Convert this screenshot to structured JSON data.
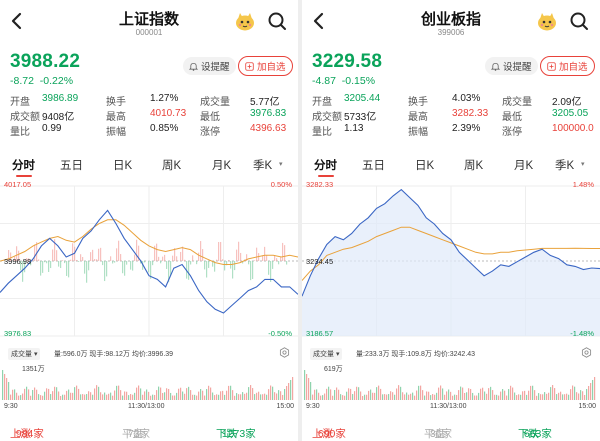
{
  "colors": {
    "up": "#e8423a",
    "down": "#0aa35a",
    "avg_line": "#e9a23b",
    "price_line": "#3a66c4"
  },
  "panels": [
    {
      "title": "上证指数",
      "code": "000001",
      "price": "3988.22",
      "change": "-8.72",
      "change_pct": "-0.22%",
      "alert_label": "设提醒",
      "watch_label": "加自选",
      "stats": [
        [
          {
            "label": "开盘",
            "value": "3986.89",
            "tone": "green"
          },
          {
            "label": "换手",
            "value": "1.27%",
            "tone": "dark"
          },
          {
            "label": "成交量",
            "value": "5.77亿",
            "tone": "dark"
          }
        ],
        [
          {
            "label": "成交额",
            "value": "9408亿",
            "tone": "dark"
          },
          {
            "label": "最高",
            "value": "4010.73",
            "tone": "red"
          },
          {
            "label": "最低",
            "value": "3976.83",
            "tone": "green"
          }
        ],
        [
          {
            "label": "量比",
            "value": "0.99",
            "tone": "dark"
          },
          {
            "label": "振幅",
            "value": "0.85%",
            "tone": "dark"
          },
          {
            "label": "涨停",
            "value": "4396.63",
            "tone": "red"
          }
        ]
      ],
      "tabs": [
        "分时",
        "五日",
        "日K",
        "周K",
        "月K",
        "季K"
      ],
      "active_tab": "分时",
      "chart": {
        "y_top": "4017.05",
        "y_mid": "3996.98",
        "y_bottom": "3976.83",
        "pct_top": "0.50%",
        "pct_bottom": "-0.50%"
      },
      "volume_label": "成交量",
      "volume_text": "量:596.0万 现手:98.12万 均价:3996.39",
      "volume_max": "1351万",
      "time_labels": [
        "9:30",
        "11:30/13:00",
        "15:00"
      ],
      "breadth": {
        "up_label": "上涨",
        "up_count": "984家",
        "flat_label": "平盘",
        "flat_count": "73家",
        "down_label": "下跌",
        "down_count": "1273家"
      },
      "chart_data": {
        "type": "line",
        "series": [
          {
            "values": [
              3988.5,
              3991,
              3993,
              3995,
              3997.5,
              4001,
              4003,
              4001,
              3998,
              3999,
              4003,
              4005,
              4008,
              4010.5,
              4007,
              4003,
              4000,
              3997,
              3993,
              3992,
              3990,
              3995,
              3996,
              3993,
              3989,
              3986,
              3984,
              3983,
              3985,
              3987,
              3989,
              3990,
              3992,
              3992,
              3990,
              3990,
              3988
            ]
          },
          {
            "values": [
              3996.9,
              3997.5,
              3998.5,
              3999.5,
              4001,
              4002,
              4003,
              4003.5,
              4002.5,
              4002,
              4003.5,
              4005.5,
              4007,
              4008,
              4008,
              4006.5,
              4004.5,
              4002.5,
              4001,
              4000,
              3999.5,
              4000,
              4000.5,
              4000,
              3998.5,
              3997.5,
              3996.5,
              3996,
              3996,
              3996.5,
              3997.5,
              3998,
              3998.5,
              3998.5,
              3998,
              3998.5,
              3998
            ]
          }
        ]
      }
    },
    {
      "title": "创业板指",
      "code": "399006",
      "price": "3229.58",
      "change": "-4.87",
      "change_pct": "-0.15%",
      "alert_label": "设提醒",
      "watch_label": "加自选",
      "stats": [
        [
          {
            "label": "开盘",
            "value": "3205.44",
            "tone": "green"
          },
          {
            "label": "换手",
            "value": "4.03%",
            "tone": "dark"
          },
          {
            "label": "成交量",
            "value": "2.09亿",
            "tone": "dark"
          }
        ],
        [
          {
            "label": "成交额",
            "value": "5733亿",
            "tone": "dark"
          },
          {
            "label": "最高",
            "value": "3282.33",
            "tone": "red"
          },
          {
            "label": "最低",
            "value": "3205.05",
            "tone": "green"
          }
        ],
        [
          {
            "label": "量比",
            "value": "1.13",
            "tone": "dark"
          },
          {
            "label": "振幅",
            "value": "2.39%",
            "tone": "dark"
          },
          {
            "label": "涨停",
            "value": "100000.0",
            "tone": "red"
          }
        ]
      ],
      "tabs": [
        "分时",
        "五日",
        "日K",
        "周K",
        "月K",
        "季K"
      ],
      "active_tab": "分时",
      "chart": {
        "y_top": "3282.33",
        "y_mid": "3234.45",
        "y_bottom": "3186.57",
        "pct_top": "1.48%",
        "pct_bottom": "-1.48%"
      },
      "volume_label": "成交量",
      "volume_text": "量:233.3万 现手:109.8万 均价:3242.43",
      "volume_max": "619万",
      "time_labels": [
        "9:30",
        "11:30/13:00",
        "15:00"
      ],
      "breadth": {
        "up_label": "上涨",
        "up_count": "690家",
        "flat_label": "平盘",
        "flat_count": "36家",
        "down_label": "下跌",
        "down_count": "663家"
      },
      "chart_data": {
        "type": "line",
        "series": [
          {
            "values": [
              3212,
              3225,
              3236,
              3245,
              3250,
              3248,
              3252,
              3258,
              3262,
              3268,
              3271,
              3276,
              3280,
              3275,
              3270,
              3262,
              3258,
              3252,
              3248,
              3240,
              3235,
              3230,
              3225,
              3228,
              3232,
              3231,
              3234,
              3237,
              3240,
              3242,
              3238,
              3236,
              3232,
              3231,
              3229,
              3230,
              3229.6
            ]
          },
          {
            "values": [
              3222,
              3228,
              3232,
              3238,
              3240,
              3242,
              3243,
              3245,
              3247,
              3250,
              3252,
              3254,
              3256,
              3256,
              3254,
              3252,
              3250,
              3248,
              3246,
              3244,
              3242,
              3240,
              3239,
              3239,
              3240,
              3240,
              3241,
              3241.5,
              3242,
              3242.5,
              3242.5,
              3242.5,
              3242.5,
              3242.6,
              3242.5,
              3242.4,
              3242.4
            ]
          }
        ]
      }
    }
  ]
}
